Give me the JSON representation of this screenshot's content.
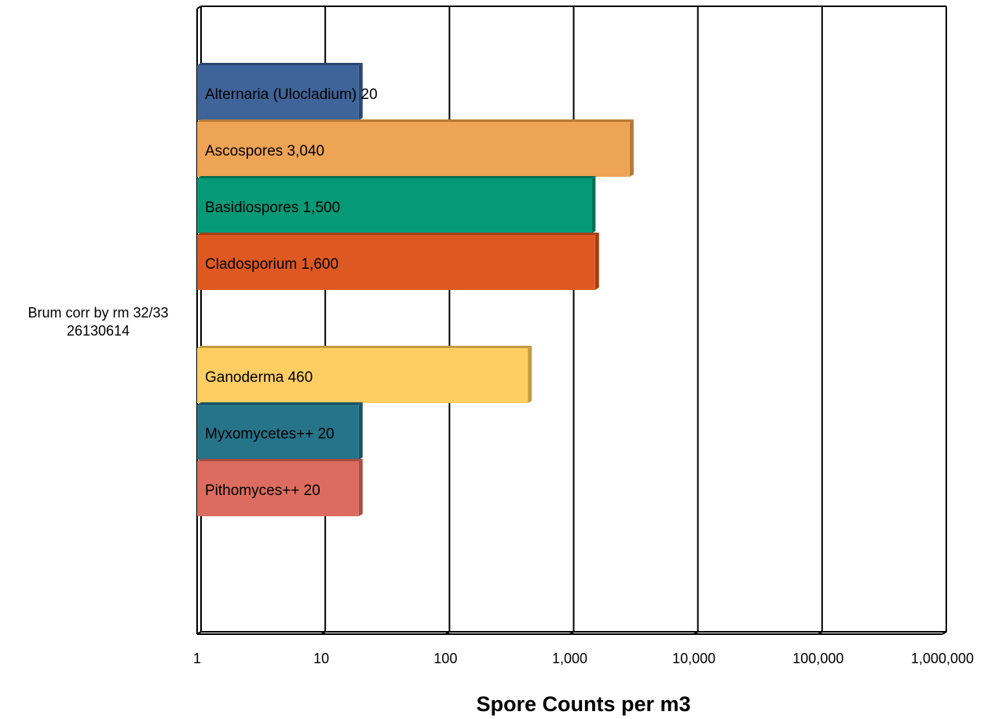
{
  "chart_data": {
    "type": "bar",
    "orientation": "horizontal",
    "xscale": "log",
    "xlim": [
      1,
      1000000
    ],
    "xticks": [
      1,
      10,
      100,
      1000,
      10000,
      100000,
      1000000
    ],
    "xtick_labels": [
      "1",
      "10",
      "100",
      "1,000",
      "10,000",
      "100,000",
      "1,000,000"
    ],
    "xlabel": "Spore Counts per m3",
    "ylabel": "",
    "title": "",
    "grid": true,
    "legend": "none",
    "categories": [
      "Brum corr by rm 32/33 26130614"
    ],
    "category_lines": [
      "Brum corr by rm 32/33",
      "26130614"
    ],
    "series": [
      {
        "name": "Alternaria (Ulocladium)",
        "value": 20,
        "label": "Alternaria (Ulocladium) 20",
        "color": "#3f6499",
        "side": "#2a4670"
      },
      {
        "name": "Ascospores",
        "value": 3040,
        "label": "Ascospores 3,040",
        "color": "#eea455",
        "side": "#b87a36"
      },
      {
        "name": "Basidiospores",
        "value": 1500,
        "label": "Basidiospores 1,500",
        "color": "#049977",
        "side": "#027055"
      },
      {
        "name": "Cladosporium",
        "value": 1600,
        "label": "Cladosporium 1,600",
        "color": "#dd5921",
        "side": "#a33e14"
      },
      {
        "name": "Ganoderma",
        "value": 460,
        "label": "Ganoderma 460",
        "color": "#fece62",
        "side": "#c49a40"
      },
      {
        "name": "Myxomycetes++",
        "value": 20,
        "label": "Myxomycetes++ 20",
        "color": "#267489",
        "side": "#1a5263"
      },
      {
        "name": "Pithomyces++",
        "value": 20,
        "label": "Pithomyces++ 20",
        "color": "#dc6c5f",
        "side": "#a54c42"
      }
    ]
  }
}
